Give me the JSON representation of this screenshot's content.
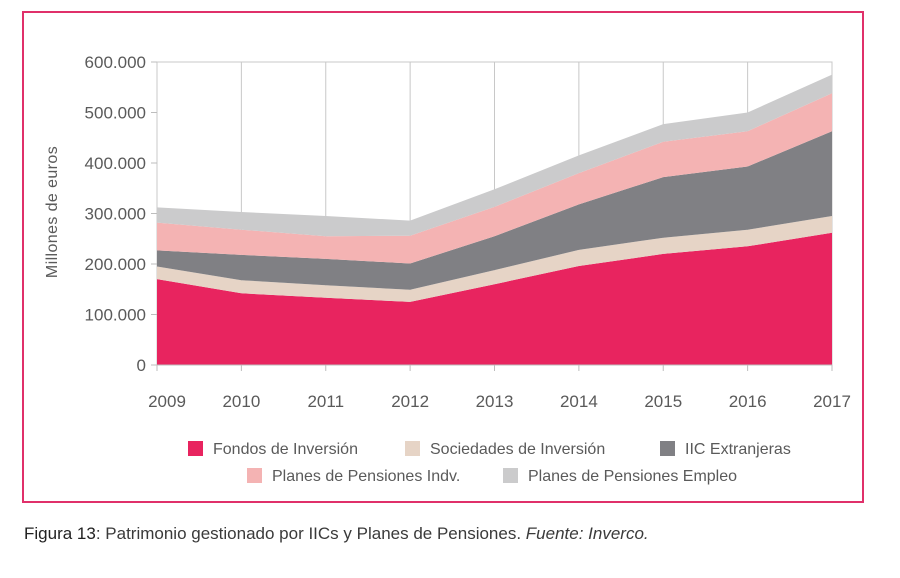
{
  "chart_data": {
    "type": "area",
    "stacked": true,
    "ylabel": "Millones de euros",
    "xlabel": "",
    "ylim": [
      0,
      600000
    ],
    "yticks": [
      0,
      100000,
      200000,
      300000,
      400000,
      500000,
      600000
    ],
    "ytick_labels": [
      "0",
      "100.000",
      "200.000",
      "300.000",
      "400.000",
      "500.000",
      "600.000"
    ],
    "categories": [
      "2009",
      "2010",
      "2011",
      "2012",
      "2013",
      "2014",
      "2015",
      "2016",
      "2017"
    ],
    "grid": "vertical",
    "series": [
      {
        "name": "Fondos de Inversión",
        "color": "#e8245f",
        "values": [
          170000,
          142000,
          133000,
          125000,
          160000,
          196000,
          220000,
          235000,
          262000
        ]
      },
      {
        "name": "Sociedades de Inversión",
        "color": "#e6d4c6",
        "values": [
          25000,
          26000,
          25000,
          24000,
          28000,
          32000,
          32000,
          33000,
          33000
        ]
      },
      {
        "name": "IIC Extranjeras",
        "color": "#808084",
        "values": [
          32000,
          50000,
          52000,
          52000,
          67000,
          90000,
          120000,
          125000,
          168000
        ]
      },
      {
        "name": "Planes de Pensiones Indv.",
        "color": "#f4b3b3",
        "values": [
          55000,
          50000,
          45000,
          55000,
          58000,
          62000,
          70000,
          70000,
          75000
        ]
      },
      {
        "name": "Planes de Pensiones Empleo",
        "color": "#cbcbcc",
        "values": [
          30000,
          35000,
          40000,
          30000,
          35000,
          35000,
          35000,
          37000,
          37000
        ]
      }
    ]
  },
  "caption": {
    "figure": "Figura 13",
    "text": ": Patrimonio gestionado por IICs y Planes de Pensiones. ",
    "source": "Fuente: Inverco."
  }
}
